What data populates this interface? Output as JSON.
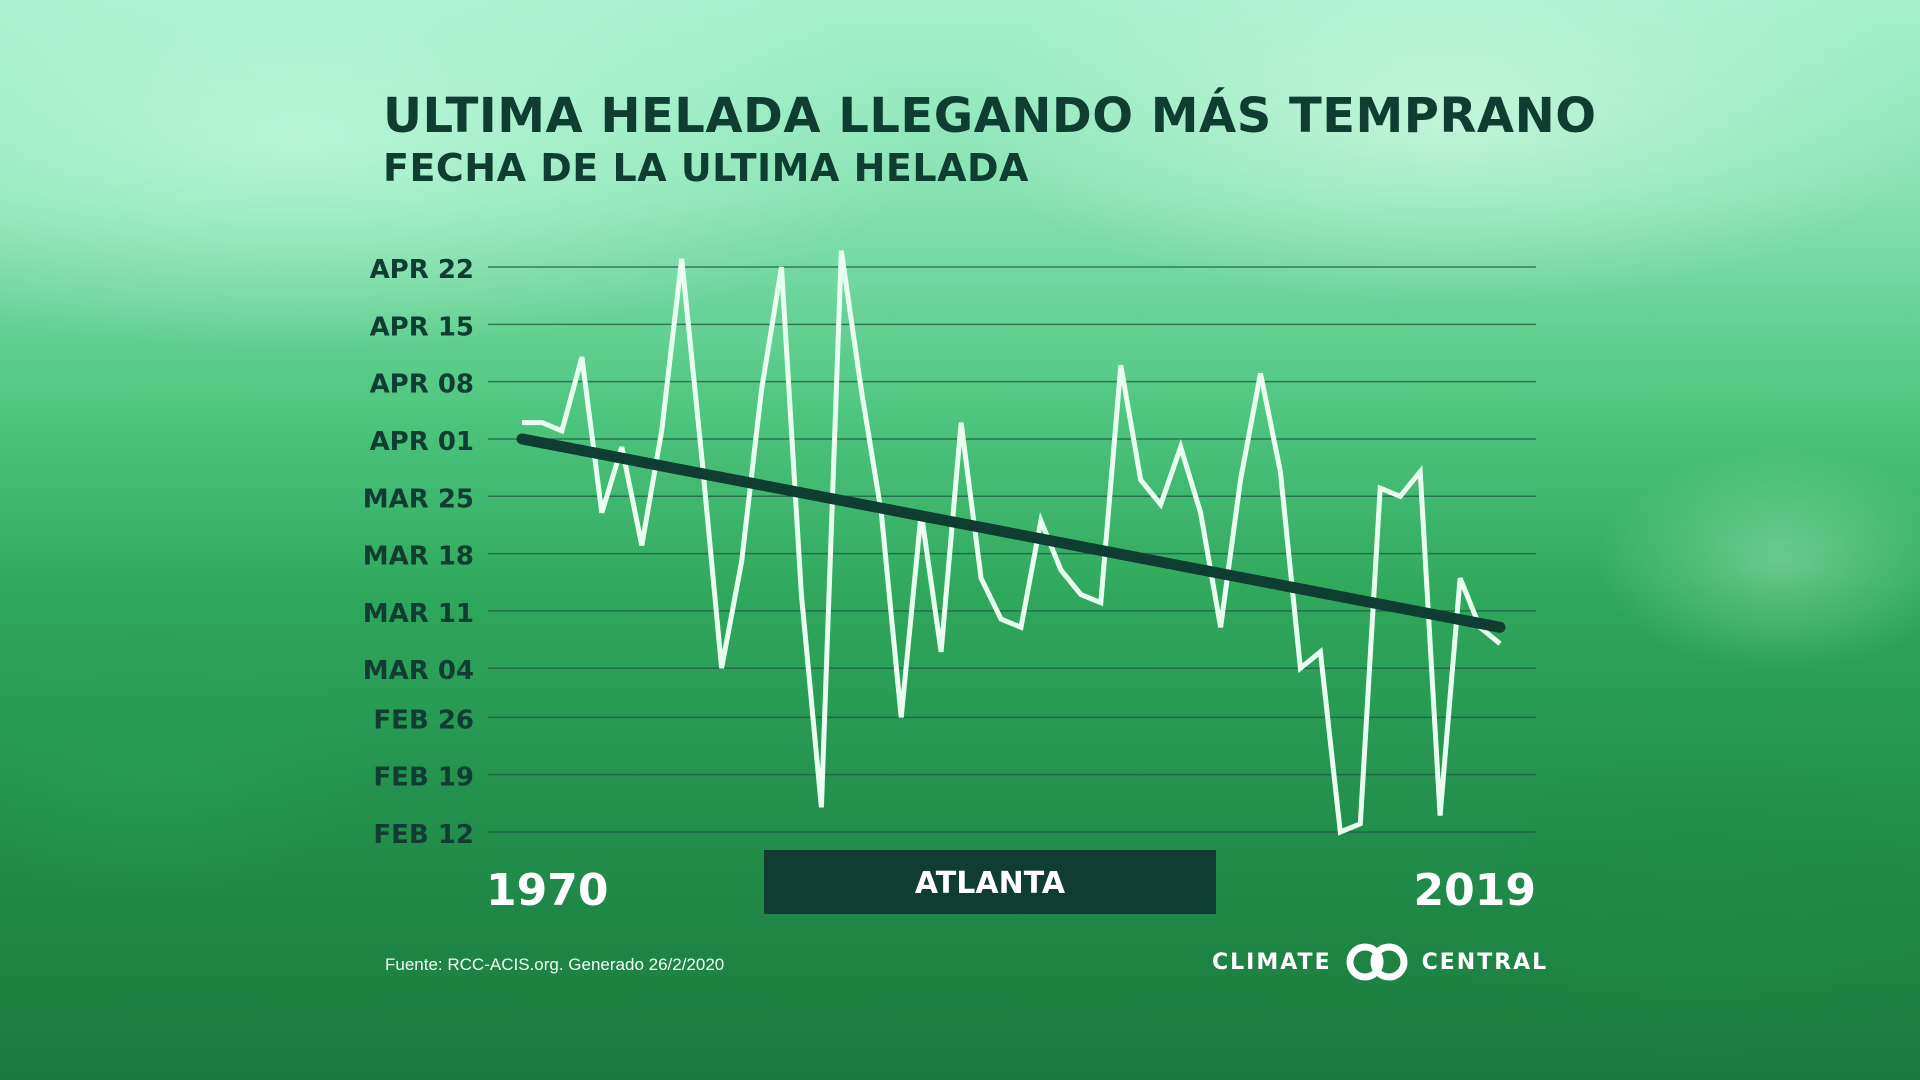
{
  "header": {
    "title": "ULTIMA HELADA LLEGANDO MÁS TEMPRANO",
    "subtitle": "FECHA DE LA ULTIMA HELADA"
  },
  "footer": {
    "source": "Fuente: RCC-ACIS.org. Generado 26/2/2020",
    "brand_left": "CLIMATE",
    "brand_right": "CENTRAL"
  },
  "colors": {
    "series_line": "#e8fff0",
    "trend_line": "#0f3d32",
    "label_box": "#0f3d32",
    "gridline": "#1f5a44"
  },
  "chart_data": {
    "type": "line",
    "title": "ULTIMA HELADA LLEGANDO MÁS TEMPRANO",
    "subtitle": "FECHA DE LA ULTIMA HELADA",
    "location_label": "ATLANTA",
    "x_range": [
      1970,
      2019
    ],
    "x_tick_labels": [
      "1970",
      "2019"
    ],
    "y_ticks": [
      "FEB 12",
      "FEB 19",
      "FEB 26",
      "MAR 04",
      "MAR 11",
      "MAR 18",
      "MAR 25",
      "APR 01",
      "APR 08",
      "APR 15",
      "APR 22"
    ],
    "y_tick_days": [
      43,
      50,
      57,
      63,
      70,
      77,
      84,
      91,
      98,
      105,
      112
    ],
    "ylim": [
      43,
      112
    ],
    "grid": true,
    "series": [
      {
        "x": [
          1970,
          1971,
          1972,
          1973,
          1974,
          1975,
          1976,
          1977,
          1978,
          1979,
          1980,
          1981,
          1982,
          1983,
          1984,
          1985,
          1986,
          1987,
          1988,
          1989,
          1990,
          1991,
          1992,
          1993,
          1994,
          1995,
          1996,
          1997,
          1998,
          1999,
          2000,
          2001,
          2002,
          2003,
          2004,
          2005,
          2006,
          2007,
          2008,
          2009,
          2010,
          2011,
          2012,
          2013,
          2014,
          2015,
          2016,
          2017,
          2018,
          2019
        ],
        "y": [
          93,
          93,
          92,
          101,
          82,
          90,
          78,
          92,
          113,
          89,
          63,
          76,
          97,
          112,
          72,
          46,
          114,
          97,
          82,
          57,
          82,
          65,
          93,
          74,
          69,
          68,
          81,
          75,
          72,
          71,
          100,
          86,
          83,
          90,
          82,
          68,
          86,
          99,
          87,
          63,
          65,
          43,
          44,
          85,
          84,
          87,
          45,
          74,
          68,
          66
        ]
      }
    ],
    "trend": {
      "x": [
        1970,
        2019
      ],
      "y": [
        91,
        68
      ]
    }
  }
}
